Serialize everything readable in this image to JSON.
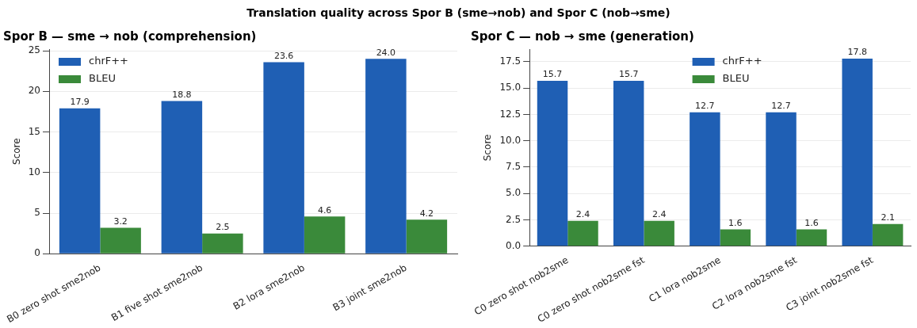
{
  "chart_data": [
    {
      "type": "bar",
      "title": "Spor B — sme → nob (comprehension)",
      "ylabel": "Score",
      "annotations": [
        "Translation quality across Spor B (sme→nob) and Spor C (nob→sme)"
      ],
      "categories": [
        "B0 zero shot sme2nob",
        "B1 five shot sme2nob",
        "B2 lora sme2nob",
        "B3 joint sme2nob"
      ],
      "series": [
        {
          "name": "chrF++",
          "color": "#1f5fb4",
          "values": [
            17.9,
            18.8,
            23.6,
            24.0
          ],
          "value_labels": [
            "17.9",
            "18.8",
            "23.6",
            "24.0"
          ]
        },
        {
          "name": "BLEU",
          "color": "#3a8a3a",
          "values": [
            3.2,
            2.5,
            4.6,
            4.2
          ],
          "value_labels": [
            "3.2",
            "2.5",
            "4.6",
            "4.2"
          ]
        }
      ],
      "ylim": [
        0,
        25.2
      ],
      "yticks": [
        0,
        5,
        10,
        15,
        20,
        25
      ],
      "grid": "y",
      "legend": "top left"
    },
    {
      "type": "bar",
      "title": "Spor C — nob → sme (generation)",
      "ylabel": "Score",
      "categories": [
        "C0 zero shot nob2sme",
        "C0 zero shot nob2sme fst",
        "C1 lora nob2sme",
        "C2 lora nob2sme fst",
        "C3 joint nob2sme fst"
      ],
      "series": [
        {
          "name": "chrF++",
          "color": "#1f5fb4",
          "values": [
            15.7,
            15.7,
            12.7,
            12.7,
            17.8
          ]
        },
        {
          "name": "BLEU",
          "color": "#3a8a3a",
          "values": [
            2.4,
            2.4,
            1.6,
            1.6,
            2.1
          ]
        }
      ],
      "ylim": [
        0,
        18.7
      ],
      "yticks": [
        {
          "value": 0,
          "label": "0.0"
        },
        {
          "value": 2.5,
          "label": "2.5"
        },
        {
          "value": 5,
          "label": "5.0"
        },
        {
          "value": 7.5,
          "label": "7.5"
        },
        {
          "value": 10,
          "label": "10.0"
        },
        {
          "value": 12.5,
          "label": "12.5"
        },
        {
          "value": 15,
          "label": "15.0"
        },
        {
          "value": 17.5,
          "label": "17.5"
        }
      ],
      "grid": "y",
      "legend": "top",
      "data_labels": true
    }
  ]
}
